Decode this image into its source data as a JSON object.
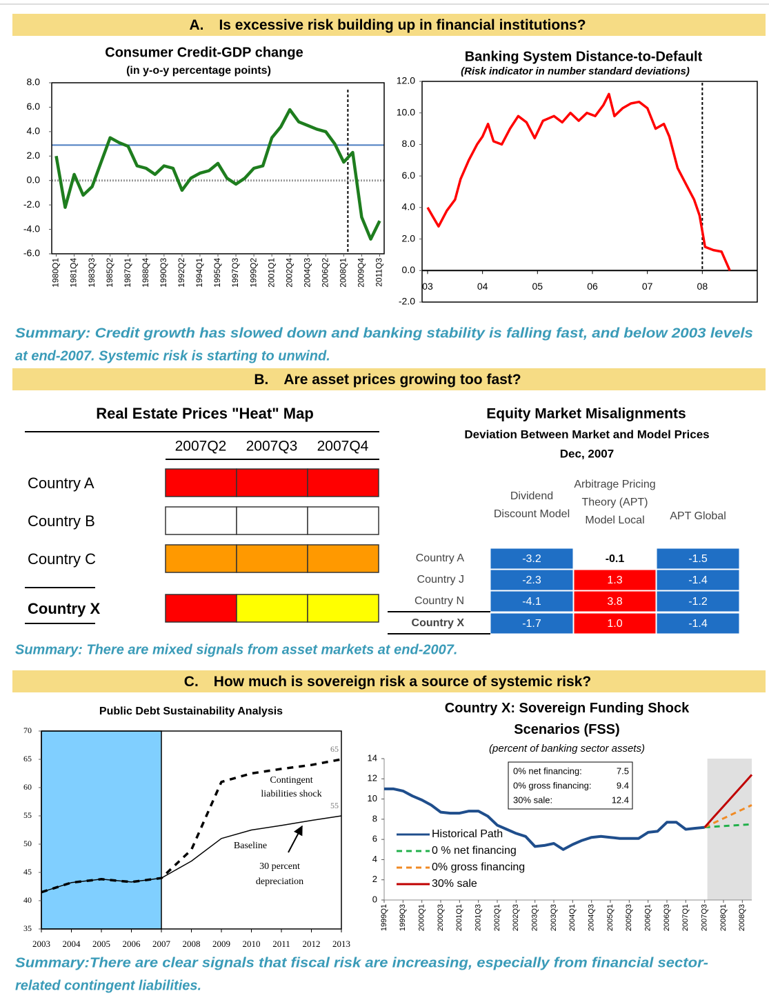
{
  "sections": [
    {
      "letter": "A.",
      "question": "Is excessive risk building up in financial institutions?",
      "summary": [
        "Summary: Credit growth has slowed down and banking stability is falling fast, and below 2003 levels",
        "at end-2007. Systemic risk is starting to unwind."
      ]
    },
    {
      "letter": "B.",
      "question": "Are asset prices growing too fast?",
      "summary": [
        "Summary: There are mixed signals from asset markets at end-2007."
      ]
    },
    {
      "letter": "C.",
      "question": "How much is sovereign risk a source of systemic risk?",
      "summary": [
        "Summary:There are clear signals that fiscal risk are increasing, especially from financial sector-",
        "related contingent liabilities."
      ]
    }
  ],
  "chart_data": [
    {
      "type": "line",
      "title": "Consumer Credit-GDP change",
      "subtitle": "(in y-o-y percentage points)",
      "categories": [
        "1980Q1",
        null,
        "1981Q4",
        null,
        "1983Q3",
        null,
        "1985Q2",
        null,
        "1987Q1",
        null,
        "1988Q4",
        null,
        "1990Q3",
        null,
        "1992Q2",
        null,
        "1994Q1",
        null,
        "1995Q4",
        null,
        "1997Q3",
        null,
        "1999Q2",
        null,
        "2001Q1",
        null,
        "2002Q4",
        null,
        "2004Q3",
        null,
        "2006Q2",
        null,
        "2008Q1",
        null,
        "2009Q4",
        null,
        "2011Q3"
      ],
      "series": [
        {
          "color": "#1e7d1e",
          "values": [
            2.0,
            -2.2,
            0.5,
            -1.2,
            -0.5,
            1.5,
            3.5,
            3.1,
            2.8,
            1.2,
            1.0,
            0.5,
            1.2,
            1.0,
            -0.8,
            0.2,
            0.6,
            0.8,
            1.4,
            0.2,
            -0.3,
            0.2,
            1.0,
            1.2,
            3.5,
            4.4,
            5.8,
            4.8,
            4.5,
            4.2,
            4.0,
            3.0,
            1.5,
            2.3,
            -3.0,
            -4.8,
            -3.3
          ]
        }
      ],
      "reference_line": {
        "value": 2.9,
        "color": "#4a7cc0"
      },
      "ylim": [
        -6,
        8
      ],
      "yticks": [
        {
          "value": -6,
          "label": "-6.0"
        },
        {
          "value": -4,
          "label": "-4.0"
        },
        {
          "value": -2,
          "label": "-2.0"
        },
        {
          "value": 0,
          "label": "0.0"
        },
        {
          "value": 2,
          "label": "2.0"
        },
        {
          "value": 4,
          "label": "4.0"
        },
        {
          "value": 6,
          "label": "6.0"
        },
        {
          "value": 8,
          "label": "8.0"
        }
      ]
    },
    {
      "type": "line",
      "title": "Banking System Distance-to-Default",
      "subtitle": "(Risk indicator in number standard deviations)",
      "x": [
        2003.0,
        2003.1,
        2003.2,
        2003.35,
        2003.5,
        2003.6,
        2003.75,
        2003.9,
        2004.0,
        2004.1,
        2004.2,
        2004.35,
        2004.5,
        2004.65,
        2004.8,
        2004.95,
        2005.1,
        2005.3,
        2005.45,
        2005.6,
        2005.75,
        2005.9,
        2006.05,
        2006.2,
        2006.3,
        2006.4,
        2006.55,
        2006.7,
        2006.85,
        2007.0,
        2007.15,
        2007.3,
        2007.4,
        2007.55,
        2007.7,
        2007.85,
        2007.95,
        2008.05,
        2008.2,
        2008.35,
        2008.5
      ],
      "series": [
        {
          "color": "#ff0000",
          "values": [
            4.0,
            3.4,
            2.8,
            3.8,
            4.5,
            5.8,
            7.0,
            8.0,
            8.5,
            9.3,
            8.2,
            8.0,
            9.0,
            9.8,
            9.4,
            8.4,
            9.5,
            9.8,
            9.4,
            10.0,
            9.5,
            10.0,
            9.8,
            10.5,
            11.2,
            9.8,
            10.3,
            10.6,
            10.7,
            10.3,
            9.0,
            9.3,
            8.5,
            6.5,
            5.5,
            4.5,
            3.5,
            1.5,
            1.3,
            1.2,
            0.0
          ]
        }
      ],
      "xlim": [
        2002.9,
        2009.0
      ],
      "xticks": [
        {
          "value": 2003,
          "label": "03"
        },
        {
          "value": 2004,
          "label": "04"
        },
        {
          "value": 2005,
          "label": "05"
        },
        {
          "value": 2006,
          "label": "06"
        },
        {
          "value": 2007,
          "label": "07"
        },
        {
          "value": 2008,
          "label": "08"
        }
      ],
      "ylim": [
        -2,
        12
      ],
      "yticks": [
        {
          "value": -2,
          "label": "-2.0"
        },
        {
          "value": 0,
          "label": "0.0"
        },
        {
          "value": 2,
          "label": "2.0"
        },
        {
          "value": 4,
          "label": "4.0"
        },
        {
          "value": 6,
          "label": "6.0"
        },
        {
          "value": 8,
          "label": "8.0"
        },
        {
          "value": 10,
          "label": "10.0"
        },
        {
          "value": 12,
          "label": "12.0"
        }
      ]
    },
    {
      "type": "line",
      "title": "Public Debt Sustainability Analysis",
      "x": [
        2003,
        2004,
        2005,
        2006,
        2007,
        2008,
        2009,
        2010,
        2011,
        2012,
        2013
      ],
      "series": [
        {
          "name": "Baseline",
          "color": "#000000",
          "values": [
            41.5,
            43.2,
            43.8,
            43.3,
            44,
            47,
            51,
            52.5,
            53.3,
            54.2,
            55
          ]
        },
        {
          "name": "Contingent liabilities shock",
          "color": "#000000",
          "dash": true,
          "values": [
            41.5,
            43.2,
            43.8,
            43.3,
            44,
            49,
            61,
            62.5,
            63.3,
            64,
            65
          ]
        }
      ],
      "annotations": [
        "30 percent depreciation"
      ],
      "shade_color": "#80cfff",
      "xlim": [
        2003,
        2013
      ],
      "xticks": [
        2003,
        2004,
        2005,
        2006,
        2007,
        2008,
        2009,
        2010,
        2011,
        2012,
        2013
      ],
      "ylim": [
        35,
        70
      ],
      "yticks": [
        35,
        40,
        45,
        50,
        55,
        60,
        65,
        70
      ]
    },
    {
      "type": "line",
      "title": "Country X: Sovereign Funding Shock Scenarios (FSS)",
      "subtitle": "(percent of banking sector assets)",
      "categories": [
        "1999Q1",
        null,
        "1999Q3",
        null,
        "2000Q1",
        null,
        "2000Q3",
        null,
        "2001Q1",
        null,
        "2001Q3",
        null,
        "2002Q1",
        null,
        "2002Q3",
        null,
        "2003Q1",
        null,
        "2003Q3",
        null,
        "2004Q1",
        null,
        "2004Q3",
        null,
        "2005Q1",
        null,
        "2005Q3",
        null,
        "2006Q1",
        null,
        "2006Q3",
        null,
        "2007Q1",
        null,
        "2007Q3",
        null,
        "2008Q1",
        null,
        "2008Q3",
        null
      ],
      "series": [
        {
          "name": "Historical Path",
          "color": "#1f4e8c",
          "values": [
            11.0,
            11.0,
            10.8,
            10.3,
            9.9,
            9.4,
            8.7,
            8.6,
            8.6,
            8.8,
            8.8,
            8.3,
            7.4,
            7.0,
            6.6,
            6.3,
            5.3,
            5.4,
            5.6,
            5.0,
            5.5,
            5.9,
            6.2,
            6.3,
            6.2,
            6.1,
            6.1,
            6.1,
            6.7,
            6.8,
            7.7,
            7.7,
            7.0,
            7.1,
            7.2,
            null,
            null,
            null,
            null,
            null
          ]
        },
        {
          "name": "0 % net financing",
          "color": "#22b04b",
          "dash": true,
          "values": [
            null,
            null,
            null,
            null,
            null,
            null,
            null,
            null,
            null,
            null,
            null,
            null,
            null,
            null,
            null,
            null,
            null,
            null,
            null,
            null,
            null,
            null,
            null,
            null,
            null,
            null,
            null,
            null,
            null,
            null,
            null,
            null,
            null,
            null,
            7.2,
            7.26,
            7.32,
            7.38,
            7.44,
            7.5
          ]
        },
        {
          "name": "0% gross financing",
          "color": "#f08a24",
          "dash": true,
          "values": [
            null,
            null,
            null,
            null,
            null,
            null,
            null,
            null,
            null,
            null,
            null,
            null,
            null,
            null,
            null,
            null,
            null,
            null,
            null,
            null,
            null,
            null,
            null,
            null,
            null,
            null,
            null,
            null,
            null,
            null,
            null,
            null,
            null,
            null,
            7.2,
            7.64,
            8.08,
            8.52,
            8.96,
            9.4
          ]
        },
        {
          "name": "30% sale",
          "color": "#c00000",
          "values": [
            null,
            null,
            null,
            null,
            null,
            null,
            null,
            null,
            null,
            null,
            null,
            null,
            null,
            null,
            null,
            null,
            null,
            null,
            null,
            null,
            null,
            null,
            null,
            null,
            null,
            null,
            null,
            null,
            null,
            null,
            null,
            null,
            null,
            null,
            7.2,
            8.24,
            9.28,
            10.32,
            11.36,
            12.4
          ]
        }
      ],
      "scenario_box": [
        {
          "label": "0% net financing:",
          "value": 7.5
        },
        {
          "label": "0% gross financing:",
          "value": 9.4
        },
        {
          "label": "30% sale:",
          "value": 12.4
        }
      ],
      "legend": "lower-left",
      "ylim": [
        0,
        14
      ],
      "yticks": [
        0,
        2,
        4,
        6,
        8,
        10,
        12,
        14
      ]
    }
  ],
  "heat_map": {
    "title": "Real Estate Prices \"Heat\" Map",
    "columns": [
      "2007Q2",
      "2007Q3",
      "2007Q4"
    ],
    "rows": [
      {
        "label": "Country A",
        "colors": [
          "#ff0000",
          "#ff0000",
          "#ff0000"
        ]
      },
      {
        "label": "Country B",
        "colors": [
          "#ffffff",
          "#ffffff",
          "#ffffff"
        ]
      },
      {
        "label": "Country C",
        "colors": [
          "#ff9900",
          "#ff9900",
          "#ff9900"
        ]
      },
      {
        "label": "Country X",
        "colors": [
          "#ff0000",
          "#ffff00",
          "#ffff00"
        ]
      }
    ]
  },
  "equity_table": {
    "title": "Equity Market Misalignments",
    "subtitle": "Deviation Between Market and Model Prices",
    "date": "Dec, 2007",
    "columns": [
      "Dividend Discount Model",
      "Arbitrage Pricing Theory (APT) Model Local",
      "APT Global"
    ],
    "rows": [
      {
        "label": "Country A",
        "cells": [
          "-3.2",
          "-0.1",
          "-1.5"
        ],
        "colors": [
          "#1f6fc5",
          "#ffffff",
          "#1f6fc5"
        ]
      },
      {
        "label": "Country J",
        "cells": [
          "-2.3",
          "1.3",
          "-1.4"
        ],
        "colors": [
          "#1f6fc5",
          "#ff0000",
          "#1f6fc5"
        ]
      },
      {
        "label": "Country N",
        "cells": [
          "-4.1",
          "3.8",
          "-1.2"
        ],
        "colors": [
          "#1f6fc5",
          "#ff0000",
          "#1f6fc5"
        ]
      },
      {
        "label": "Country X",
        "cells": [
          "-1.7",
          "1.0",
          "-1.4"
        ],
        "colors": [
          "#1f6fc5",
          "#ff0000",
          "#1f6fc5"
        ]
      }
    ]
  }
}
